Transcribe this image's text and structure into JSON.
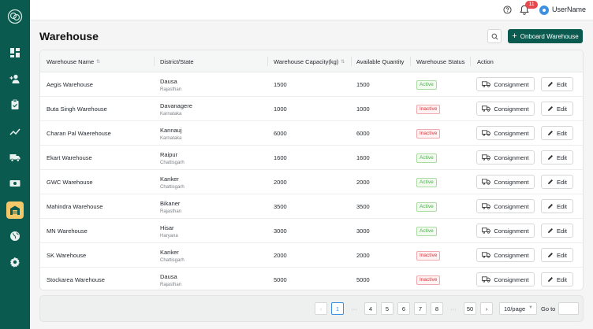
{
  "topbar": {
    "notification_count": "11",
    "username": "UserName"
  },
  "page": {
    "title": "Warehouse",
    "onboard_label": "Onboard Warehouse"
  },
  "sidebar": {
    "items": [
      {
        "icon": "dashboard-icon"
      },
      {
        "icon": "add-user-icon"
      },
      {
        "icon": "clipboard-icon"
      },
      {
        "icon": "trend-icon"
      },
      {
        "icon": "truck-icon"
      },
      {
        "icon": "money-icon"
      },
      {
        "icon": "warehouse-icon",
        "active": true
      },
      {
        "icon": "globe-icon"
      },
      {
        "icon": "gear-icon"
      }
    ]
  },
  "table": {
    "columns": [
      "Warehouse Name",
      "District/State",
      "Warehouse Capacity(kg)",
      "Available Quantity",
      "Warehouse Status",
      "Action"
    ],
    "consignment_label": "Consignment",
    "edit_label": "Edit",
    "rows": [
      {
        "name": "Aegis Warehouse",
        "district": "Dausa",
        "state": "Rajasthan",
        "capacity": "1500",
        "available": "1500",
        "status": "Active"
      },
      {
        "name": "Buta Singh Warehouse",
        "district": "Davanagere",
        "state": "Karnataka",
        "capacity": "1000",
        "available": "1000",
        "status": "Inactive"
      },
      {
        "name": "Charan Pal Waerehouse",
        "district": "Kannauj",
        "state": "Karnataka",
        "capacity": "6000",
        "available": "6000",
        "status": "Inactive"
      },
      {
        "name": "Ekart Warehouse",
        "district": "Raipur",
        "state": "Chattisgarh",
        "capacity": "1600",
        "available": "1600",
        "status": "Active"
      },
      {
        "name": "GWC Warehouse",
        "district": "Kanker",
        "state": "Chattisgarh",
        "capacity": "2000",
        "available": "2000",
        "status": "Active"
      },
      {
        "name": "Mahindra Warehouse",
        "district": "Bikaner",
        "state": "Rajasthan",
        "capacity": "3500",
        "available": "3500",
        "status": "Active"
      },
      {
        "name": "MN Warehouse",
        "district": "Hisar",
        "state": "Haryana",
        "capacity": "3000",
        "available": "3000",
        "status": "Active"
      },
      {
        "name": "SK Warehouse",
        "district": "Kanker",
        "state": "Chattisgarh",
        "capacity": "2000",
        "available": "2000",
        "status": "Inactive"
      },
      {
        "name": "Stockarea Warehouse",
        "district": "Dausa",
        "state": "Rajasthan",
        "capacity": "5000",
        "available": "5000",
        "status": "Inactive"
      }
    ]
  },
  "pagination": {
    "prev": "‹",
    "next": "›",
    "items": [
      "1",
      "···",
      "4",
      "5",
      "6",
      "7",
      "8",
      "···",
      "50"
    ],
    "current": "1",
    "page_size": "10/page",
    "goto_label": "Go to",
    "goto_value": ""
  }
}
